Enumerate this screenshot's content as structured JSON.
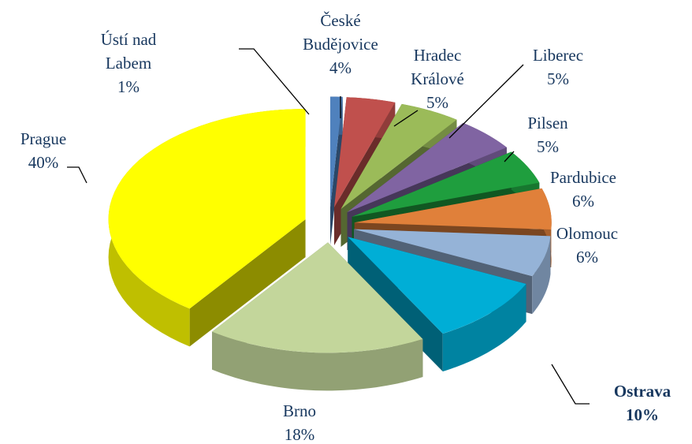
{
  "chart_data": {
    "type": "pie3d",
    "categories": [
      "Ústí nad Labem",
      "České Budějovice",
      "Hradec Králové",
      "Liberec",
      "Pilsen",
      "Pardubice",
      "Olomouc",
      "Ostrava",
      "Brno",
      "Prague"
    ],
    "values": [
      1,
      4,
      5,
      5,
      5,
      6,
      6,
      10,
      18,
      40
    ],
    "value_labels": [
      "1%",
      "4%",
      "5%",
      "5%",
      "5%",
      "6%",
      "6%",
      "10%",
      "18%",
      "40%"
    ],
    "colors": [
      "#4f81bd",
      "#c0504d",
      "#9bbb59",
      "#8064a2",
      "#1f9e3e",
      "#e0803a",
      "#95b3d7",
      "#00aed6",
      "#c3d69b",
      "#ffff00"
    ]
  }
}
